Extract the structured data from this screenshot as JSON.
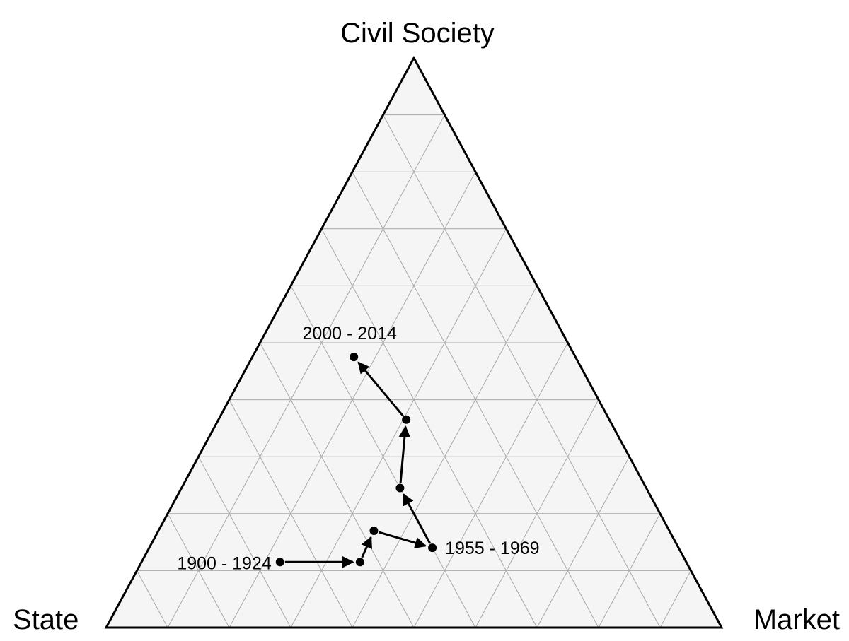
{
  "chart_data": {
    "type": "ternary",
    "axes": {
      "top": "Civil Society",
      "left": "State",
      "right": "Market"
    },
    "grid": true,
    "grid_divisions": 10,
    "colors": {
      "triangle_fill": "#f5f5f5",
      "grid": "#a8a8a8",
      "outline": "#000000",
      "path": "#000000"
    },
    "points": [
      {
        "label": "1900 - 1924",
        "civil_society": 0.115,
        "state": 0.66,
        "market": 0.225
      },
      {
        "label": "",
        "civil_society": 0.115,
        "state": 0.53,
        "market": 0.355
      },
      {
        "label": "",
        "civil_society": 0.17,
        "state": 0.48,
        "market": 0.35
      },
      {
        "label": "1955 - 1969",
        "civil_society": 0.14,
        "state": 0.4,
        "market": 0.46
      },
      {
        "label": "",
        "civil_society": 0.245,
        "state": 0.4,
        "market": 0.355
      },
      {
        "label": "",
        "civil_society": 0.365,
        "state": 0.33,
        "market": 0.305
      },
      {
        "label": "2000 - 2014",
        "civil_society": 0.475,
        "state": 0.36,
        "market": 0.165
      }
    ]
  }
}
